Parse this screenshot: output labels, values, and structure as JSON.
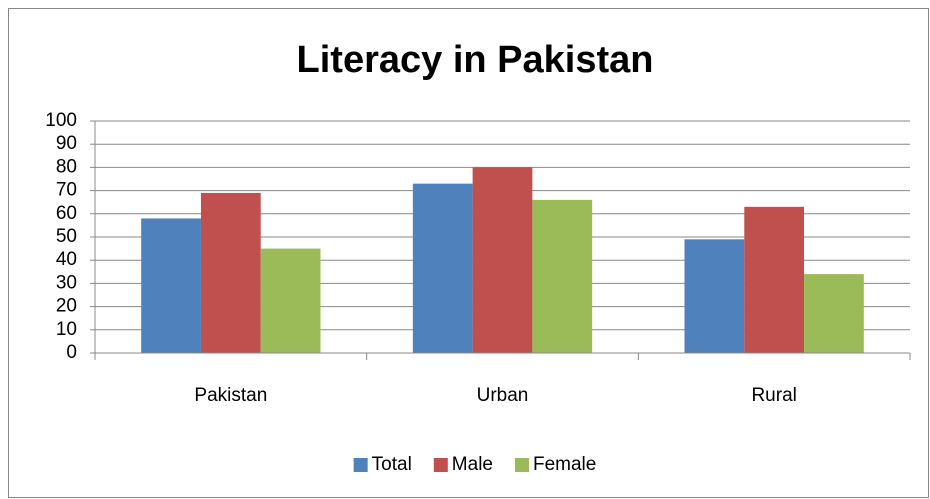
{
  "chart_data": {
    "type": "bar",
    "title": "Literacy in Pakistan",
    "categories": [
      "Pakistan",
      "Urban",
      "Rural"
    ],
    "series": [
      {
        "name": "Total",
        "color": "#4f81bd",
        "values": [
          58,
          73,
          49
        ]
      },
      {
        "name": "Male",
        "color": "#c0504d",
        "values": [
          69,
          80,
          63
        ]
      },
      {
        "name": "Female",
        "color": "#9bbb59",
        "values": [
          45,
          66,
          34
        ]
      }
    ],
    "ylim": [
      0,
      100
    ],
    "yticks": [
      0,
      10,
      20,
      30,
      40,
      50,
      60,
      70,
      80,
      90,
      100
    ],
    "grid": true,
    "legend": "bottom"
  }
}
